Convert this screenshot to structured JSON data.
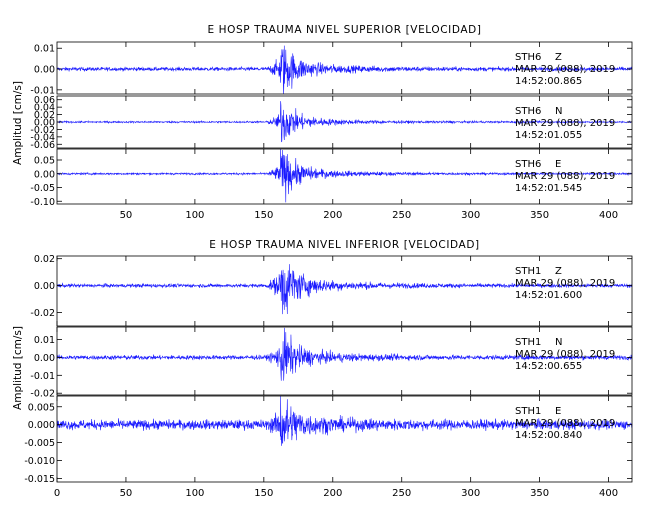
{
  "chart_data": [
    {
      "type": "line",
      "title": "E HOSP TRAUMA NIVEL SUPERIOR [VELOCIDAD]",
      "ylabel": "Amplitud [cm/s]",
      "xlabel": "",
      "xlim": [
        0,
        417
      ],
      "xticks": [
        50,
        100,
        150,
        200,
        250,
        300,
        350,
        400
      ],
      "grid": false,
      "line_color": "#1a1aff",
      "event_time_s": 162,
      "traces": [
        {
          "station": "STH6",
          "component": "Z",
          "date": "MAR 29 (088), 2019",
          "time": "14:52:00.865",
          "ylim": [
            -0.012,
            0.013
          ],
          "yticks": [
            "0.01",
            "0.00",
            "-0.01"
          ],
          "ytick_values": [
            0.01,
            0.0,
            -0.01
          ],
          "noise": 0.0008,
          "peak": 0.011
        },
        {
          "station": "STH6",
          "component": "N",
          "date": "MAR 29 (088), 2019",
          "time": "14:52:01.055",
          "ylim": [
            -0.07,
            0.07
          ],
          "yticks": [
            "0.06",
            "0.04",
            "0.02",
            "0.00",
            "-0.02",
            "-0.04",
            "-0.06"
          ],
          "ytick_values": [
            0.06,
            0.04,
            0.02,
            0.0,
            -0.02,
            -0.04,
            -0.06
          ],
          "noise": 0.002,
          "peak": 0.05
        },
        {
          "station": "STH6",
          "component": "E",
          "date": "MAR 29 (088), 2019",
          "time": "14:52:01.545",
          "ylim": [
            -0.11,
            0.09
          ],
          "yticks": [
            "0.05",
            "0.00",
            "-0.05",
            "-0.10"
          ],
          "ytick_values": [
            0.05,
            0.0,
            -0.05,
            -0.1
          ],
          "noise": 0.003,
          "peak": 0.08
        }
      ]
    },
    {
      "type": "line",
      "title": "E HOSP TRAUMA NIVEL INFERIOR [VELOCIDAD]",
      "ylabel": "Amplitud [cm/s]",
      "xlabel": "",
      "xlim": [
        0,
        417
      ],
      "xticks": [
        0,
        50,
        100,
        150,
        200,
        250,
        300,
        350,
        400
      ],
      "grid": false,
      "line_color": "#1a1aff",
      "event_time_s": 162,
      "traces": [
        {
          "station": "STH1",
          "component": "Z",
          "date": "MAR 29 (088), 2019",
          "time": "14:52:01.600",
          "ylim": [
            -0.03,
            0.022
          ],
          "yticks": [
            "0.02",
            "0.00",
            "-0.02"
          ],
          "ytick_values": [
            0.02,
            0.0,
            -0.02
          ],
          "noise": 0.0012,
          "peak": 0.021
        },
        {
          "station": "STH1",
          "component": "N",
          "date": "MAR 29 (088), 2019",
          "time": "14:52:00.655",
          "ylim": [
            -0.021,
            0.017
          ],
          "yticks": [
            "0.01",
            "0.00",
            "-0.01",
            "-0.02"
          ],
          "ytick_values": [
            0.01,
            0.0,
            -0.01,
            -0.02
          ],
          "noise": 0.0011,
          "peak": 0.013
        },
        {
          "station": "STH1",
          "component": "E",
          "date": "MAR 29 (088), 2019",
          "time": "14:52:00.840",
          "ylim": [
            -0.016,
            0.008
          ],
          "yticks": [
            "0.005",
            "0.000",
            "-0.005",
            "-0.010",
            "-0.015"
          ],
          "ytick_values": [
            0.005,
            0.0,
            -0.005,
            -0.01,
            -0.015
          ],
          "noise": 0.0012,
          "peak": 0.0065
        }
      ]
    }
  ]
}
